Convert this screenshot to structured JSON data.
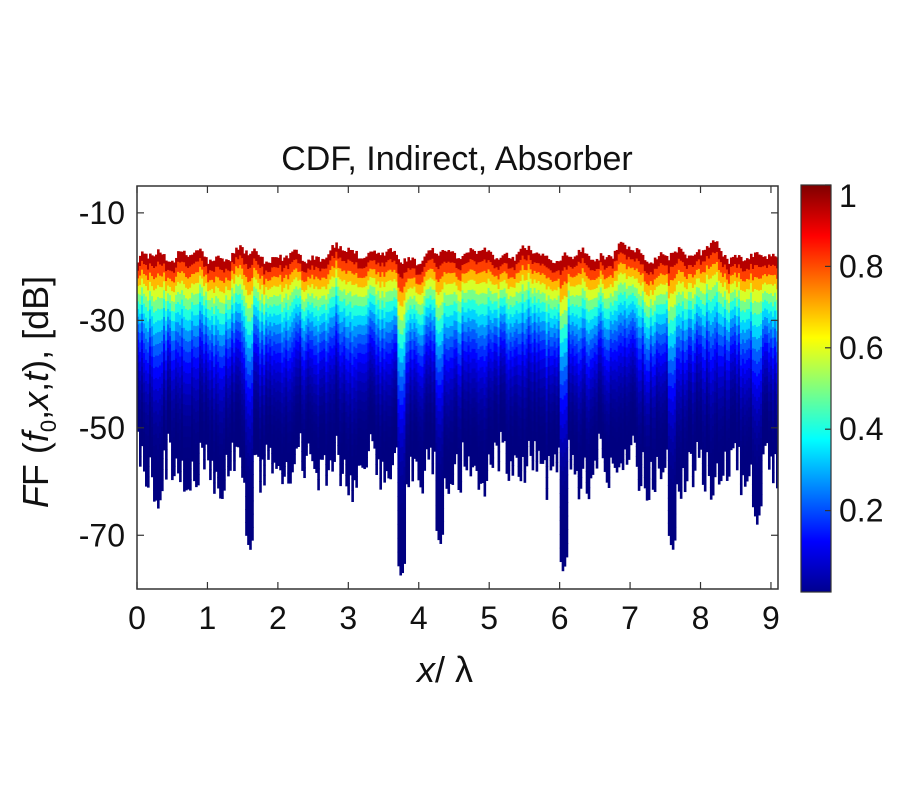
{
  "chart_data": {
    "type": "heatmap",
    "title": "CDF, Indirect, Absorber",
    "xlabel": {
      "italic": "x",
      "rest": "/ λ"
    },
    "ylabel": {
      "prefix": "F (",
      "f": "f",
      "sub": "0",
      "mid1": ",",
      "x": "x",
      "mid2": ",",
      "t": "t",
      "suffix": "), [dB]"
    },
    "xlim": [
      0,
      9.1
    ],
    "ylim": [
      -80,
      -5
    ],
    "x_ticks": [
      "0",
      "1",
      "2",
      "3",
      "4",
      "5",
      "6",
      "7",
      "8",
      "9"
    ],
    "y_ticks": [
      "-10",
      "-30",
      "-50",
      "-70"
    ],
    "colorbar": {
      "range": [
        0,
        1
      ],
      "ticks": [
        "0.2",
        "0.4",
        "0.6",
        "0.8",
        "1"
      ],
      "colormap": "jet"
    },
    "upper_envelope_db": [
      {
        "x": 0.0,
        "y": -19
      },
      {
        "x": 0.3,
        "y": -18
      },
      {
        "x": 0.6,
        "y": -17.5
      },
      {
        "x": 1.0,
        "y": -18.5
      },
      {
        "x": 1.5,
        "y": -17.5
      },
      {
        "x": 2.0,
        "y": -18.5
      },
      {
        "x": 2.5,
        "y": -18
      },
      {
        "x": 2.9,
        "y": -17
      },
      {
        "x": 3.5,
        "y": -18
      },
      {
        "x": 4.0,
        "y": -18.5
      },
      {
        "x": 4.5,
        "y": -17
      },
      {
        "x": 5.0,
        "y": -18
      },
      {
        "x": 5.5,
        "y": -17.5
      },
      {
        "x": 6.0,
        "y": -18.5
      },
      {
        "x": 6.5,
        "y": -18
      },
      {
        "x": 7.0,
        "y": -17
      },
      {
        "x": 7.5,
        "y": -18.5
      },
      {
        "x": 8.0,
        "y": -17
      },
      {
        "x": 8.1,
        "y": -15.5
      },
      {
        "x": 8.4,
        "y": -19
      },
      {
        "x": 8.6,
        "y": -17.5
      },
      {
        "x": 9.1,
        "y": -19
      }
    ],
    "deep_nulls_db": [
      {
        "x": 0.3,
        "y": -65
      },
      {
        "x": 1.6,
        "y": -73
      },
      {
        "x": 3.75,
        "y": -78
      },
      {
        "x": 4.3,
        "y": -72
      },
      {
        "x": 6.05,
        "y": -77
      },
      {
        "x": 7.6,
        "y": -73
      },
      {
        "x": 8.8,
        "y": -68
      }
    ],
    "colors": {
      "low": "#00008f",
      "high": "#7f0000"
    }
  }
}
